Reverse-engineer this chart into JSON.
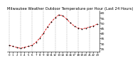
{
  "title": "Milwaukee Weather Outdoor Temperature per Hour (Last 24 Hours)",
  "hours": [
    0,
    1,
    2,
    3,
    4,
    5,
    6,
    7,
    8,
    9,
    10,
    11,
    12,
    13,
    14,
    15,
    16,
    17,
    18,
    19,
    20,
    21,
    22,
    23
  ],
  "temps": [
    28,
    27,
    26,
    25,
    26,
    27,
    28,
    31,
    35,
    40,
    46,
    51,
    55,
    58,
    57,
    54,
    50,
    47,
    45,
    44,
    45,
    46,
    47,
    49
  ],
  "line_color": "#dd0000",
  "marker_color": "#000000",
  "bg_color": "#ffffff",
  "grid_color": "#888888",
  "ylim": [
    22,
    62
  ],
  "yticks": [
    25,
    30,
    35,
    40,
    45,
    50,
    55,
    60
  ],
  "ytick_labels": [
    "25",
    "30",
    "35",
    "40",
    "45",
    "50",
    "55",
    "60"
  ],
  "title_fontsize": 3.8,
  "tick_fontsize": 3.2,
  "linewidth": 0.6,
  "markersize": 1.8
}
